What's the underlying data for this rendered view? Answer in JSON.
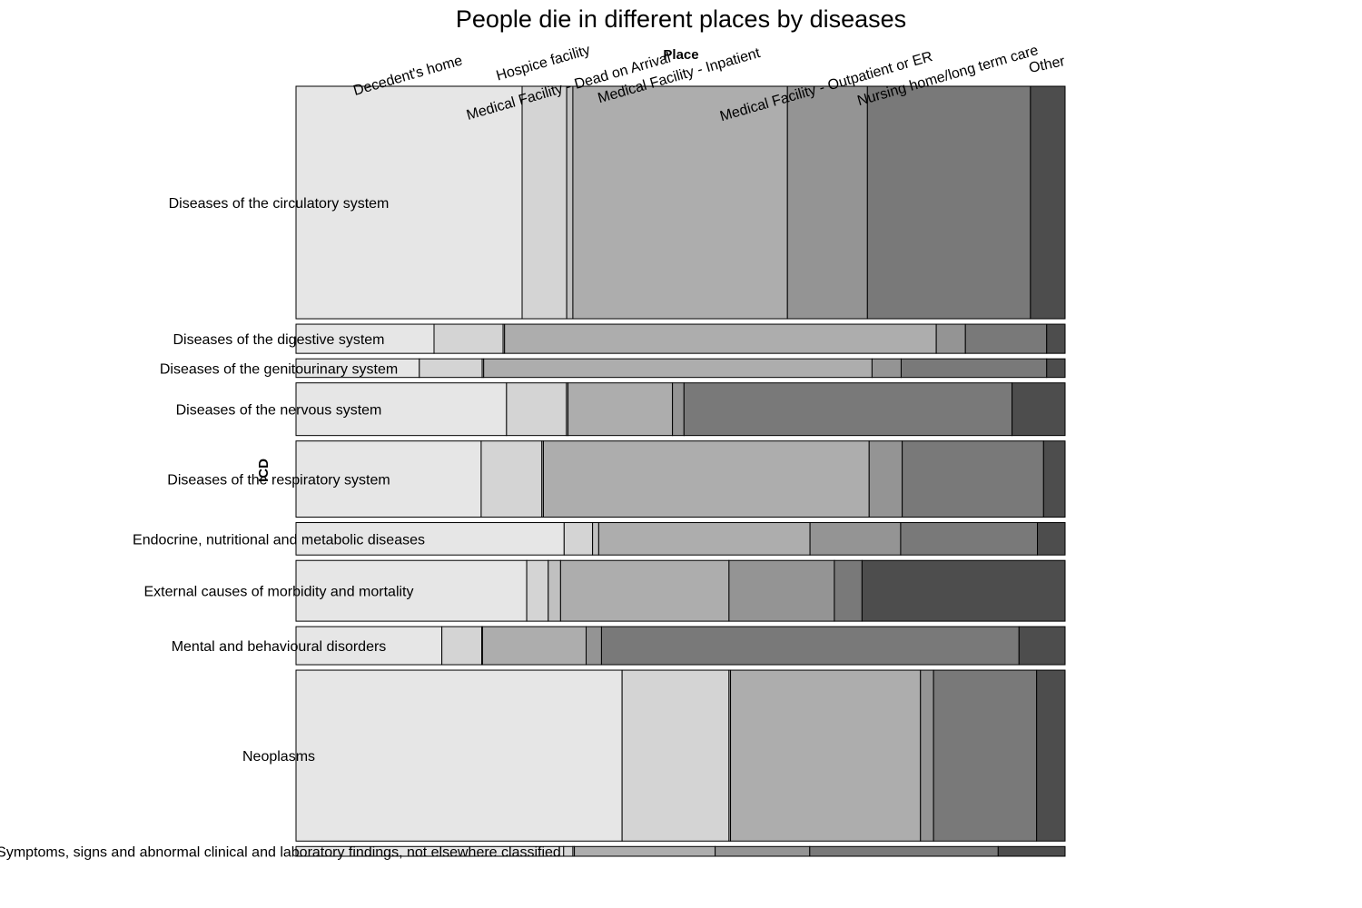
{
  "chart_data": {
    "type": "mosaic",
    "title": "People die in different places by diseases",
    "xlabel": "Place",
    "ylabel": "ICD",
    "places": [
      "Decedent's home",
      "Hospice facility",
      "Medical Facility - Dead on Arrival",
      "Medical Facility - Inpatient",
      "Medical Facility - Outpatient or ER",
      "Nursing home/long term care",
      "Other"
    ],
    "place_colors": [
      "#e6e6e6",
      "#d4d4d4",
      "#c0c0c0",
      "#adadad",
      "#949494",
      "#797979",
      "#4d4d4d"
    ],
    "rows": [
      {
        "name": "Diseases of the circulatory system",
        "share": 0.287,
        "proportions": [
          0.294,
          0.058,
          0.008,
          0.279,
          0.104,
          0.212,
          0.045
        ]
      },
      {
        "name": "Diseases of the digestive system",
        "share": 0.036,
        "proportions": [
          0.18,
          0.09,
          0.002,
          0.563,
          0.038,
          0.106,
          0.024
        ]
      },
      {
        "name": "Diseases of the genitourinary system",
        "share": 0.023,
        "proportions": [
          0.161,
          0.082,
          0.002,
          0.507,
          0.038,
          0.19,
          0.024
        ]
      },
      {
        "name": "Diseases of the nervous system",
        "share": 0.065,
        "proportions": [
          0.274,
          0.078,
          0.002,
          0.136,
          0.015,
          0.427,
          0.069
        ]
      },
      {
        "name": "Diseases of the respiratory system",
        "share": 0.094,
        "proportions": [
          0.241,
          0.079,
          0.002,
          0.424,
          0.043,
          0.184,
          0.028
        ]
      },
      {
        "name": "Endocrine, nutritional and metabolic diseases",
        "share": 0.04,
        "proportions": [
          0.349,
          0.037,
          0.008,
          0.275,
          0.118,
          0.178,
          0.036
        ]
      },
      {
        "name": "External causes of morbidity and mortality",
        "share": 0.075,
        "proportions": [
          0.3,
          0.028,
          0.016,
          0.219,
          0.137,
          0.036,
          0.264
        ]
      },
      {
        "name": "Mental and behavioural disorders",
        "share": 0.047,
        "proportions": [
          0.19,
          0.052,
          0.001,
          0.135,
          0.02,
          0.544,
          0.06
        ]
      },
      {
        "name": "Neoplasms",
        "share": 0.211,
        "proportions": [
          0.424,
          0.139,
          0.002,
          0.247,
          0.017,
          0.134,
          0.037
        ]
      },
      {
        "name": "Symptoms, signs and abnormal clinical and laboratory findings, not elsewhere classified",
        "share": 0.012,
        "proportions": [
          0.348,
          0.012,
          0.002,
          0.183,
          0.123,
          0.245,
          0.087
        ]
      }
    ]
  }
}
